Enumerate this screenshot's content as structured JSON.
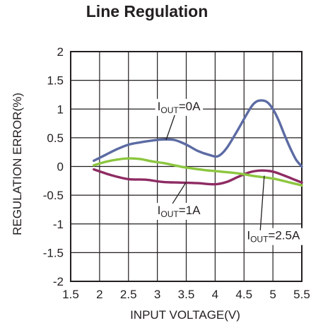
{
  "chart_data": {
    "type": "line",
    "title": "Line Regulation",
    "xlabel": "INPUT VOLTAGE(V)",
    "ylabel": "REGULATION ERROR(%)",
    "xlim": [
      1.5,
      5.5
    ],
    "ylim": [
      -2,
      2
    ],
    "xticks": [
      1.5,
      2,
      2.5,
      3,
      3.5,
      4,
      4.5,
      5,
      5.5
    ],
    "xtick_labels": [
      "1.5",
      "2",
      "2.5",
      "3",
      "3.5",
      "4",
      "4.5",
      "5",
      "5.5"
    ],
    "yticks": [
      2,
      1.5,
      1,
      0.5,
      0,
      -0.5,
      -1,
      -1.5,
      -2
    ],
    "ytick_labels": [
      "2",
      "1.5",
      "1",
      "0.5",
      "0",
      "-0.5",
      "-1",
      "-1.5",
      "-2"
    ],
    "grid": true,
    "series": [
      {
        "name": "IOUT=0A",
        "color": "#5c6ba3",
        "x": [
          1.9,
          2.1,
          2.3,
          2.5,
          2.7,
          2.9,
          3.1,
          3.3,
          3.5,
          3.7,
          3.9,
          4.05,
          4.2,
          4.4,
          4.6,
          4.7,
          4.8,
          4.9,
          5.0,
          5.1,
          5.2,
          5.3,
          5.4,
          5.5
        ],
        "y": [
          0.1,
          0.2,
          0.3,
          0.38,
          0.42,
          0.45,
          0.47,
          0.46,
          0.38,
          0.27,
          0.2,
          0.18,
          0.32,
          0.65,
          1.0,
          1.12,
          1.15,
          1.12,
          1.0,
          0.8,
          0.55,
          0.32,
          0.12,
          0.0
        ]
      },
      {
        "name": "IOUT=1A",
        "color": "#8e2b63",
        "x": [
          1.9,
          2.2,
          2.5,
          2.8,
          3.1,
          3.4,
          3.7,
          4.0,
          4.2,
          4.4,
          4.6,
          4.8,
          5.0,
          5.2,
          5.4,
          5.5
        ],
        "y": [
          -0.05,
          -0.15,
          -0.22,
          -0.23,
          -0.27,
          -0.28,
          -0.29,
          -0.31,
          -0.27,
          -0.18,
          -0.1,
          -0.07,
          -0.09,
          -0.16,
          -0.24,
          -0.28
        ]
      },
      {
        "name": "IOUT=2.5A",
        "color": "#8cc63f",
        "x": [
          1.9,
          2.1,
          2.3,
          2.5,
          2.7,
          2.9,
          3.1,
          3.3,
          3.5,
          3.8,
          4.1,
          4.4,
          4.7,
          5.0,
          5.3,
          5.5
        ],
        "y": [
          0.02,
          0.08,
          0.12,
          0.14,
          0.13,
          0.09,
          0.06,
          0.02,
          -0.02,
          -0.06,
          -0.09,
          -0.12,
          -0.17,
          -0.21,
          -0.28,
          -0.33
        ]
      }
    ],
    "annotations": [
      {
        "id": "a0",
        "main": "I",
        "sub": "OUT",
        "rest": "=0A",
        "series_index": 0,
        "target": [
          3.15,
          0.46
        ],
        "text_at": [
          3.0,
          0.98
        ]
      },
      {
        "id": "a1",
        "main": "I",
        "sub": "OUT",
        "rest": "=1A",
        "series_index": 1,
        "target": [
          3.5,
          -0.27
        ],
        "text_at": [
          3.0,
          -0.83
        ]
      },
      {
        "id": "a2",
        "main": "I",
        "sub": "OUT",
        "rest": "=2.5A",
        "series_index": 2,
        "target": [
          4.85,
          -0.16
        ],
        "text_at": [
          4.55,
          -1.27
        ]
      }
    ]
  }
}
